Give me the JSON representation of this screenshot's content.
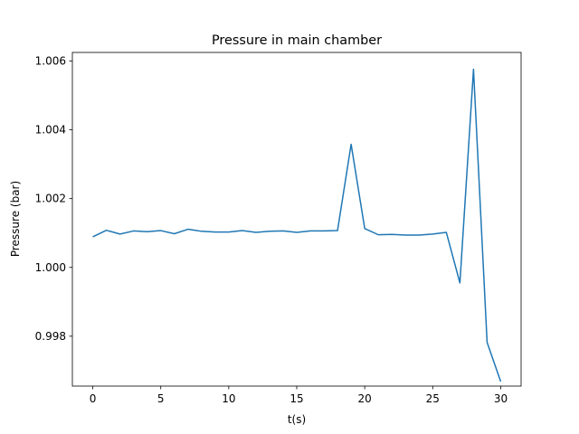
{
  "chart_data": {
    "type": "line",
    "title": "Pressure in main chamber",
    "xlabel": "t(s)",
    "ylabel": "Pressure (bar)",
    "xlim": [
      -1.5,
      31.5
    ],
    "ylim": [
      0.99655,
      1.00625
    ],
    "xticks": [
      0,
      5,
      10,
      15,
      20,
      25,
      30
    ],
    "xtick_labels": [
      "0",
      "5",
      "10",
      "15",
      "20",
      "25",
      "30"
    ],
    "yticks": [
      0.998,
      1.0,
      1.002,
      1.004,
      1.006
    ],
    "ytick_labels": [
      "0.998",
      "1.000",
      "1.002",
      "1.004",
      "1.006"
    ],
    "grid": false,
    "series": [
      {
        "color": "#1f77b4",
        "x": [
          0,
          1,
          2,
          3,
          4,
          5,
          6,
          7,
          8,
          9,
          10,
          11,
          12,
          13,
          14,
          15,
          16,
          17,
          18,
          19,
          20,
          21,
          22,
          23,
          24,
          25,
          26,
          27,
          28,
          29,
          30
        ],
        "y": [
          1.00089,
          1.00108,
          1.00097,
          1.00106,
          1.00104,
          1.00107,
          1.00098,
          1.00111,
          1.00105,
          1.00103,
          1.00103,
          1.00107,
          1.00102,
          1.00105,
          1.00106,
          1.00102,
          1.00106,
          1.00106,
          1.00107,
          1.00358,
          1.00113,
          1.00095,
          1.00096,
          1.00094,
          1.00094,
          1.00097,
          1.00102,
          0.99955,
          1.00576,
          0.99782,
          0.99668
        ]
      }
    ]
  }
}
